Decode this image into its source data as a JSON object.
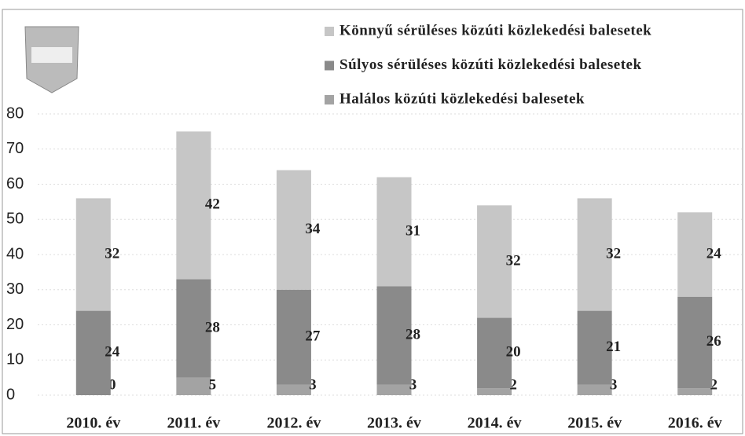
{
  "chart_data": {
    "type": "stacked_bar",
    "categories": [
      "2010. év",
      "2011. év",
      "2012. év",
      "2013. év",
      "2014. év",
      "2015. év",
      "2016. év"
    ],
    "series": [
      {
        "name": "Halálos közúti közlekedési balesetek",
        "color": "#a3a3a3",
        "values": [
          0,
          5,
          3,
          3,
          2,
          3,
          2
        ]
      },
      {
        "name": "Súlyos sérüléses közúti közlekedési balesetek",
        "color": "#8a8a8a",
        "values": [
          24,
          28,
          27,
          28,
          20,
          21,
          26
        ]
      },
      {
        "name": "Könnyű sérüléses közúti közlekedési balesetek",
        "color": "#c6c6c6",
        "values": [
          32,
          42,
          34,
          31,
          32,
          32,
          24
        ]
      }
    ],
    "ylim": [
      0,
      80
    ],
    "yticks": [
      0,
      10,
      20,
      30,
      40,
      50,
      60,
      70,
      80
    ],
    "grid": true,
    "legend": "top-right"
  }
}
